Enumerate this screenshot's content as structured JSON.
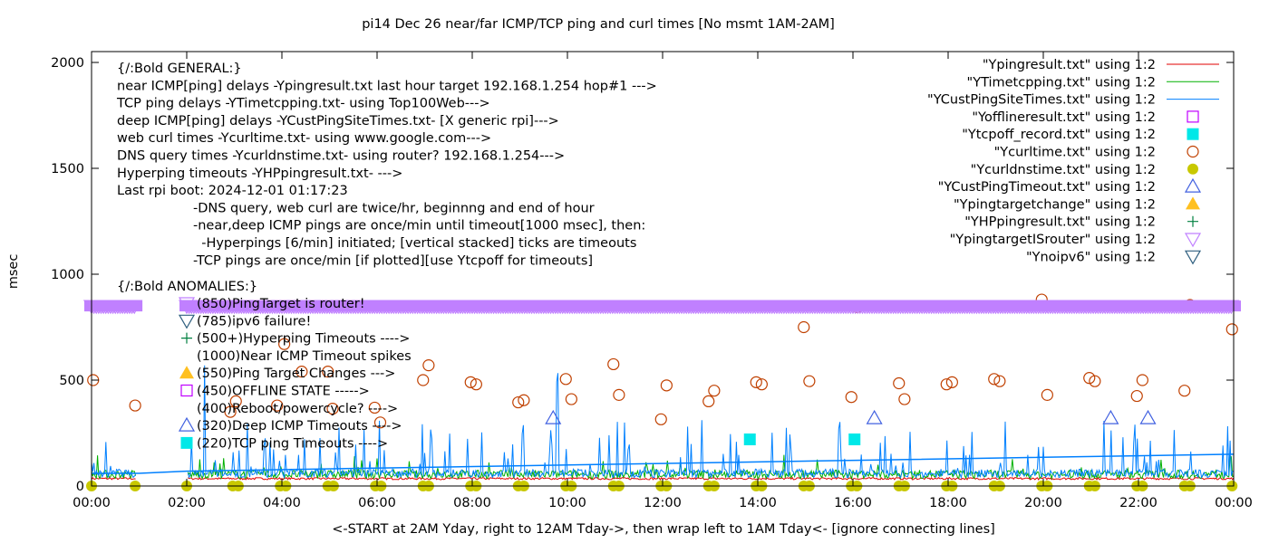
{
  "chart_data": {
    "type": "line",
    "title": "pi14 Dec 26  near/far ICMP/TCP ping and curl times [No msmt 1AM-2AM]",
    "xlabel": "<-START at 2AM Yday, right to 12AM Tday->, then wrap left to 1AM Tday<- [ignore connecting lines]",
    "ylabel": "msec",
    "xlim": [
      "00:00",
      "24:00"
    ],
    "ylim": [
      0,
      2050
    ],
    "x_ticks": [
      "00:00",
      "02:00",
      "04:00",
      "06:00",
      "08:00",
      "10:00",
      "12:00",
      "14:00",
      "16:00",
      "18:00",
      "20:00",
      "22:00",
      "00:00"
    ],
    "y_ticks": [
      0,
      500,
      1000,
      1500,
      2000
    ],
    "grid": false,
    "legend_position": "top-right",
    "general_text": [
      "{/:Bold GENERAL:}",
      "near ICMP[ping] delays -Ypingresult.txt last hour target 192.168.1.254 hop#1 --->",
      "TCP ping delays -YTimetcpping.txt- using Top100Web--->",
      "deep ICMP[ping] delays -YCustPingSiteTimes.txt- [X generic rpi]--->",
      "web curl times -Ycurltime.txt- using www.google.com--->",
      "DNS query times -Ycurldnstime.txt- using router? 192.168.1.254--->",
      "Hyperping timeouts -YHPpingresult.txt- --->",
      "Last rpi boot: 2024-12-01 01:17:23"
    ],
    "notes_text": [
      "-DNS query, web curl are twice/hr, beginnng and end of hour",
      "-near,deep ICMP pings are once/min until timeout[1000 msec], then:",
      "  -Hyperpings [6/min] initiated; [vertical stacked] ticks are timeouts",
      "-TCP pings are once/min [if plotted][use Ytcpoff for timeouts]"
    ],
    "anomalies_title": "{/:Bold ANOMALIES:}",
    "anomalies": [
      {
        "text": "(850)PingTarget is router!",
        "marker": "triangle-down-open",
        "color": "#c080ff"
      },
      {
        "text": "(785)ipv6 failure!",
        "marker": "triangle-down-open",
        "color": "#306080"
      },
      {
        "text": "(500+)Hyperping Timeouts ---->",
        "marker": "plus",
        "color": "#008040"
      },
      {
        "text": "(1000)Near ICMP Timeout spikes",
        "marker": "none",
        "color": ""
      },
      {
        "text": "(550)Ping Target Changes --->",
        "marker": "triangle-up-filled",
        "color": "#ffc020"
      },
      {
        "text": "(450)OFFLINE STATE ----->",
        "marker": "square-open",
        "color": "#c000ff"
      },
      {
        "text": "(400)Reboot/powercycle? ---->",
        "marker": "none",
        "color": ""
      },
      {
        "text": "(320)Deep ICMP Timeouts ---->",
        "marker": "triangle-up-open",
        "color": "#4060e0"
      },
      {
        "text": "(220)TCP ping Timeouts ---->",
        "marker": "square-filled",
        "color": "#00e8e8"
      }
    ],
    "series": [
      {
        "name": "\"Ypingresult.txt\" using 1:2",
        "style": "line",
        "color": "#e00000",
        "level": 30
      },
      {
        "name": "\"YTimetcpping.txt\" using 1:2",
        "style": "line",
        "color": "#00b000",
        "level": 50
      },
      {
        "name": "\"YCustPingSiteTimes.txt\" using 1:2",
        "style": "line",
        "color": "#0080ff",
        "level": 60
      },
      {
        "name": "\"Yofflineresult.txt\" using 1:2",
        "style": "square-open",
        "color": "#c000ff",
        "points": []
      },
      {
        "name": "\"Ytcpoff_record.txt\" using 1:2",
        "style": "square-filled",
        "color": "#00e8e8",
        "points": [
          [
            "13:50",
            220
          ],
          [
            "16:02",
            220
          ]
        ]
      },
      {
        "name": "\"Ycurltime.txt\" using 1:2",
        "style": "circle-open",
        "color": "#c04000",
        "points": [
          [
            "00:02",
            500
          ],
          [
            "00:55",
            380
          ],
          [
            "02:55",
            350
          ],
          [
            "03:02",
            400
          ],
          [
            "03:54",
            380
          ],
          [
            "04:03",
            670
          ],
          [
            "04:25",
            540
          ],
          [
            "04:58",
            540
          ],
          [
            "05:04",
            365
          ],
          [
            "05:57",
            370
          ],
          [
            "06:04",
            300
          ],
          [
            "06:58",
            500
          ],
          [
            "07:05",
            570
          ],
          [
            "07:58",
            490
          ],
          [
            "08:05",
            480
          ],
          [
            "08:58",
            395
          ],
          [
            "09:05",
            405
          ],
          [
            "09:58",
            505
          ],
          [
            "10:05",
            410
          ],
          [
            "10:58",
            575
          ],
          [
            "11:05",
            430
          ],
          [
            "11:58",
            315
          ],
          [
            "12:05",
            475
          ],
          [
            "12:58",
            400
          ],
          [
            "13:05",
            450
          ],
          [
            "13:58",
            490
          ],
          [
            "14:05",
            480
          ],
          [
            "14:58",
            750
          ],
          [
            "15:05",
            495
          ],
          [
            "15:58",
            420
          ],
          [
            "16:05",
            845
          ],
          [
            "16:58",
            485
          ],
          [
            "17:05",
            410
          ],
          [
            "17:58",
            480
          ],
          [
            "18:05",
            490
          ],
          [
            "18:58",
            505
          ],
          [
            "19:05",
            495
          ],
          [
            "19:58",
            880
          ],
          [
            "20:05",
            430
          ],
          [
            "20:58",
            510
          ],
          [
            "21:05",
            495
          ],
          [
            "21:58",
            425
          ],
          [
            "22:05",
            500
          ],
          [
            "22:58",
            450
          ],
          [
            "23:05",
            855
          ],
          [
            "23:58",
            740
          ]
        ]
      },
      {
        "name": "\"Ycurldnstime.txt\" using 1:2",
        "style": "circle-filled",
        "color": "#c8c800",
        "points": [
          [
            "00:00",
            0
          ],
          [
            "00:55",
            0
          ],
          [
            "02:00",
            0
          ],
          [
            "02:58",
            0
          ],
          [
            "03:05",
            0
          ],
          [
            "03:58",
            0
          ],
          [
            "04:05",
            0
          ],
          [
            "04:58",
            0
          ],
          [
            "05:05",
            0
          ],
          [
            "05:58",
            0
          ],
          [
            "06:05",
            0
          ],
          [
            "06:58",
            0
          ],
          [
            "07:05",
            0
          ],
          [
            "07:58",
            0
          ],
          [
            "08:05",
            0
          ],
          [
            "08:58",
            0
          ],
          [
            "09:05",
            0
          ],
          [
            "09:58",
            0
          ],
          [
            "10:05",
            0
          ],
          [
            "10:58",
            0
          ],
          [
            "11:05",
            0
          ],
          [
            "11:58",
            0
          ],
          [
            "12:05",
            0
          ],
          [
            "12:58",
            0
          ],
          [
            "13:05",
            0
          ],
          [
            "13:58",
            0
          ],
          [
            "14:05",
            0
          ],
          [
            "14:58",
            0
          ],
          [
            "15:05",
            0
          ],
          [
            "15:58",
            0
          ],
          [
            "16:05",
            0
          ],
          [
            "16:58",
            0
          ],
          [
            "17:05",
            0
          ],
          [
            "17:58",
            0
          ],
          [
            "18:05",
            0
          ],
          [
            "18:58",
            0
          ],
          [
            "19:05",
            0
          ],
          [
            "19:58",
            0
          ],
          [
            "20:05",
            0
          ],
          [
            "20:58",
            0
          ],
          [
            "21:05",
            0
          ],
          [
            "21:58",
            0
          ],
          [
            "22:05",
            0
          ],
          [
            "22:58",
            0
          ],
          [
            "23:05",
            0
          ],
          [
            "23:58",
            0
          ]
        ]
      },
      {
        "name": "\"YCustPingTimeout.txt\" using 1:2",
        "style": "triangle-up-open",
        "color": "#4060e0",
        "points": [
          [
            "09:42",
            320
          ],
          [
            "16:27",
            320
          ],
          [
            "21:25",
            320
          ],
          [
            "22:12",
            320
          ]
        ]
      },
      {
        "name": "\"Ypingtargetchange\" using 1:2",
        "style": "triangle-up-filled",
        "color": "#ffc020",
        "points": []
      },
      {
        "name": "\"YHPpingresult.txt\" using 1:2",
        "style": "plus",
        "color": "#008040",
        "points": []
      },
      {
        "name": "\"YpingtargetISrouter\" using 1:2",
        "style": "triangle-down-open",
        "color": "#c080ff",
        "ranges": [
          [
            "00:00",
            "00:55"
          ],
          [
            "02:00",
            "24:00"
          ]
        ],
        "value": 850
      },
      {
        "name": "\"Ynoipv6\" using 1:2",
        "style": "triangle-down-open",
        "color": "#306080",
        "points": []
      }
    ]
  }
}
